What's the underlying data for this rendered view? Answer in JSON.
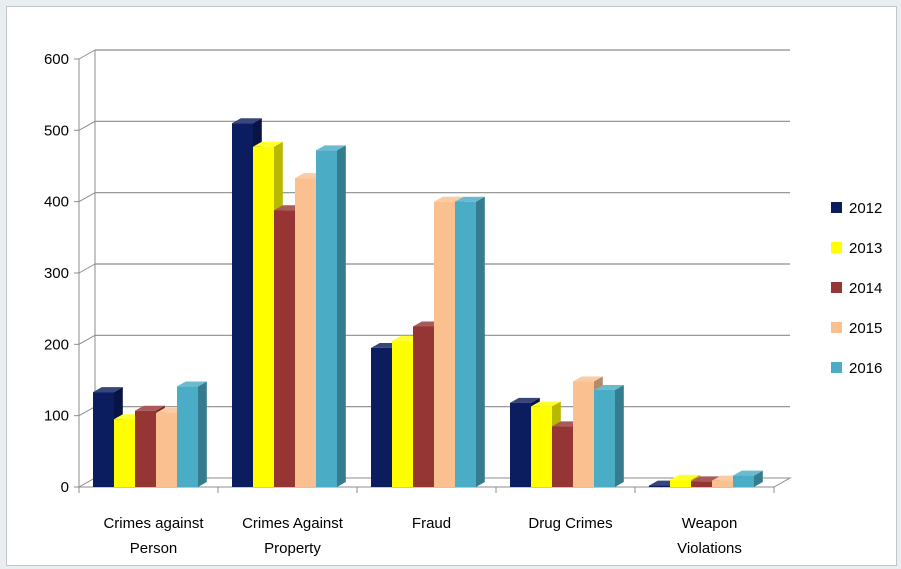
{
  "chart_data": {
    "type": "bar",
    "title": "",
    "xlabel": "",
    "ylabel": "",
    "ylim": [
      0,
      600
    ],
    "yticks": [
      "0",
      "100",
      "200",
      "300",
      "400",
      "500",
      "600"
    ],
    "categories": [
      [
        "Crimes against",
        "Person"
      ],
      [
        "Crimes Against",
        "Property"
      ],
      [
        "Fraud"
      ],
      [
        "Drug Crimes"
      ],
      [
        "Weapon",
        "Violations"
      ]
    ],
    "series": [
      {
        "name": "2012",
        "color": "#0b1d5e",
        "values": [
          133,
          510,
          195,
          118,
          2
        ]
      },
      {
        "name": "2013",
        "color": "#ffff00",
        "values": [
          95,
          477,
          205,
          113,
          10
        ]
      },
      {
        "name": "2014",
        "color": "#963634",
        "values": [
          107,
          388,
          225,
          85,
          8
        ]
      },
      {
        "name": "2015",
        "color": "#fac090",
        "values": [
          104,
          433,
          400,
          148,
          9
        ]
      },
      {
        "name": "2016",
        "color": "#4bacc6",
        "values": [
          141,
          472,
          400,
          136,
          16
        ]
      }
    ],
    "grid": true,
    "legend_position": "right",
    "style": "3d-clustered-column"
  }
}
